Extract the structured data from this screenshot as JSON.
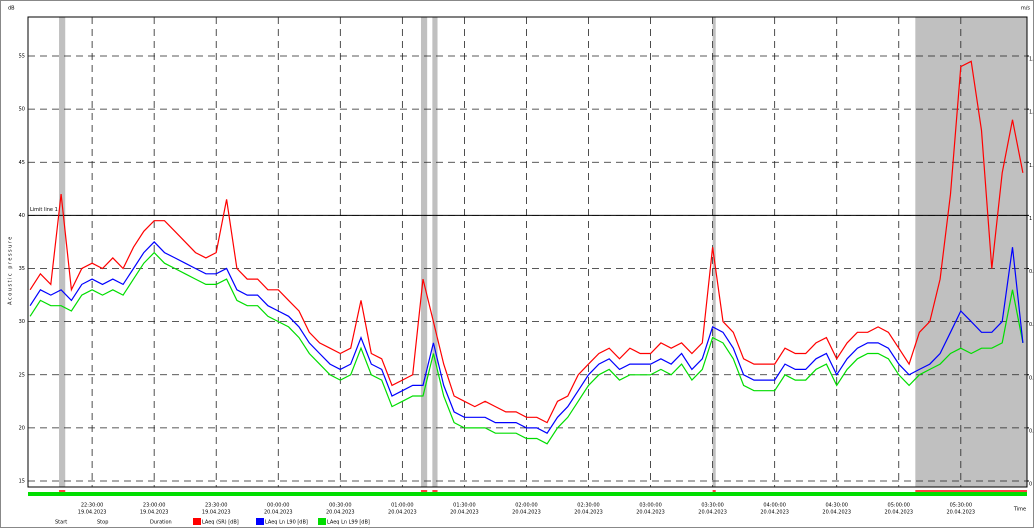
{
  "chart_data": {
    "type": "line",
    "y_unit": "dB",
    "y2_unit": "m/s",
    "y_label": "Acoustic pressure",
    "x_label": "Time",
    "grid": true,
    "x": [
      "2023-04-19T22:00:00",
      "2023-04-19T22:05:00",
      "2023-04-19T22:10:00",
      "2023-04-19T22:15:00",
      "2023-04-19T22:20:00",
      "2023-04-19T22:25:00",
      "2023-04-19T22:30:00",
      "2023-04-19T22:35:00",
      "2023-04-19T22:40:00",
      "2023-04-19T22:45:00",
      "2023-04-19T22:50:00",
      "2023-04-19T22:55:00",
      "2023-04-19T23:00:00",
      "2023-04-19T23:05:00",
      "2023-04-19T23:10:00",
      "2023-04-19T23:15:00",
      "2023-04-19T23:20:00",
      "2023-04-19T23:25:00",
      "2023-04-19T23:30:00",
      "2023-04-19T23:35:00",
      "2023-04-19T23:40:00",
      "2023-04-19T23:45:00",
      "2023-04-19T23:50:00",
      "2023-04-19T23:55:00",
      "2023-04-20T00:00:00",
      "2023-04-20T00:05:00",
      "2023-04-20T00:10:00",
      "2023-04-20T00:15:00",
      "2023-04-20T00:20:00",
      "2023-04-20T00:25:00",
      "2023-04-20T00:30:00",
      "2023-04-20T00:35:00",
      "2023-04-20T00:40:00",
      "2023-04-20T00:45:00",
      "2023-04-20T00:50:00",
      "2023-04-20T00:55:00",
      "2023-04-20T01:00:00",
      "2023-04-20T01:05:00",
      "2023-04-20T01:10:00",
      "2023-04-20T01:15:00",
      "2023-04-20T01:20:00",
      "2023-04-20T01:25:00",
      "2023-04-20T01:30:00",
      "2023-04-20T01:35:00",
      "2023-04-20T01:40:00",
      "2023-04-20T01:45:00",
      "2023-04-20T01:50:00",
      "2023-04-20T01:55:00",
      "2023-04-20T02:00:00",
      "2023-04-20T02:05:00",
      "2023-04-20T02:10:00",
      "2023-04-20T02:15:00",
      "2023-04-20T02:20:00",
      "2023-04-20T02:25:00",
      "2023-04-20T02:30:00",
      "2023-04-20T02:35:00",
      "2023-04-20T02:40:00",
      "2023-04-20T02:45:00",
      "2023-04-20T02:50:00",
      "2023-04-20T02:55:00",
      "2023-04-20T03:00:00",
      "2023-04-20T03:05:00",
      "2023-04-20T03:10:00",
      "2023-04-20T03:15:00",
      "2023-04-20T03:20:00",
      "2023-04-20T03:25:00",
      "2023-04-20T03:30:00",
      "2023-04-20T03:35:00",
      "2023-04-20T03:40:00",
      "2023-04-20T03:45:00",
      "2023-04-20T03:50:00",
      "2023-04-20T03:55:00",
      "2023-04-20T04:00:00",
      "2023-04-20T04:05:00",
      "2023-04-20T04:10:00",
      "2023-04-20T04:15:00",
      "2023-04-20T04:20:00",
      "2023-04-20T04:25:00",
      "2023-04-20T04:30:00",
      "2023-04-20T04:35:00",
      "2023-04-20T04:40:00",
      "2023-04-20T04:45:00",
      "2023-04-20T04:50:00",
      "2023-04-20T04:55:00",
      "2023-04-20T05:00:00",
      "2023-04-20T05:05:00",
      "2023-04-20T05:10:00",
      "2023-04-20T05:15:00",
      "2023-04-20T05:20:00",
      "2023-04-20T05:25:00",
      "2023-04-20T05:30:00",
      "2023-04-20T05:35:00",
      "2023-04-20T05:40:00",
      "2023-04-20T05:45:00",
      "2023-04-20T05:50:00",
      "2023-04-20T05:55:00",
      "2023-04-20T06:00:00"
    ],
    "xlim": [
      "2023-04-19T21:59:00",
      "2023-04-20T06:02:00"
    ],
    "xticks": [
      {
        "value": "2023-04-19T22:30:00",
        "label": "22:30:00",
        "date": "19.04.2023"
      },
      {
        "value": "2023-04-19T23:00:00",
        "label": "23:00:00",
        "date": "19.04.2023"
      },
      {
        "value": "2023-04-19T23:30:00",
        "label": "23:30:00",
        "date": "19.04.2023"
      },
      {
        "value": "2023-04-20T00:00:00",
        "label": "00:00:00",
        "date": "20.04.2023"
      },
      {
        "value": "2023-04-20T00:30:00",
        "label": "00:30:00",
        "date": "20.04.2023"
      },
      {
        "value": "2023-04-20T01:00:00",
        "label": "01:00:00",
        "date": "20.04.2023"
      },
      {
        "value": "2023-04-20T01:30:00",
        "label": "01:30:00",
        "date": "20.04.2023"
      },
      {
        "value": "2023-04-20T02:00:00",
        "label": "02:00:00",
        "date": "20.04.2023"
      },
      {
        "value": "2023-04-20T02:30:00",
        "label": "02:30:00",
        "date": "20.04.2023"
      },
      {
        "value": "2023-04-20T03:00:00",
        "label": "03:00:00",
        "date": "20.04.2023"
      },
      {
        "value": "2023-04-20T03:30:00",
        "label": "03:30:00",
        "date": "20.04.2023"
      },
      {
        "value": "2023-04-20T04:00:00",
        "label": "04:00:00",
        "date": "20.04.2023"
      },
      {
        "value": "2023-04-20T04:30:00",
        "label": "04:30:00",
        "date": "20.04.2023"
      },
      {
        "value": "2023-04-20T05:00:00",
        "label": "05:00:00",
        "date": "20.04.2023"
      },
      {
        "value": "2023-04-20T05:30:00",
        "label": "05:30:00",
        "date": "20.04.2023"
      }
    ],
    "ylim": [
      15,
      55
    ],
    "yticks": [
      15,
      20,
      25,
      30,
      35,
      40,
      45,
      50,
      55
    ],
    "y2lim": [
      0,
      1.6
    ],
    "y2ticks": [
      0,
      0.2,
      0.4,
      0.6,
      0.8,
      1,
      1.2,
      1.4,
      1.6
    ],
    "limit_line": {
      "value": 40,
      "label": "Limit line 1"
    },
    "excluded_ranges": [
      [
        "2023-04-19T22:14:00",
        "2023-04-19T22:17:00"
      ],
      [
        "2023-04-20T01:09:00",
        "2023-04-20T01:12:00"
      ],
      [
        "2023-04-20T01:14:30",
        "2023-04-20T01:17:00"
      ],
      [
        "2023-04-20T03:30:00",
        "2023-04-20T03:31:30"
      ],
      [
        "2023-04-20T05:08:00",
        "2023-04-20T06:02:00"
      ]
    ],
    "legend_extra": [
      "Start",
      "Stop",
      "Duration"
    ],
    "series": [
      {
        "name": "LAeq (SR) [dB]",
        "color": "#ff0000",
        "values": [
          33,
          34.5,
          33.5,
          42,
          33,
          35,
          35.5,
          35,
          36,
          35,
          37,
          38.5,
          39.5,
          39.5,
          38.5,
          37.5,
          36.5,
          36,
          36.5,
          41.5,
          35,
          34,
          34,
          33,
          33,
          32,
          31,
          29,
          28,
          27.5,
          27,
          27.5,
          32,
          27,
          26.5,
          24,
          24.5,
          25,
          34,
          30,
          26,
          23,
          22.5,
          22,
          22.5,
          22,
          21.5,
          21.5,
          21,
          21,
          20.5,
          22.5,
          23,
          25,
          26,
          27,
          27.5,
          26.5,
          27.5,
          27,
          27,
          28,
          27.5,
          28,
          27,
          28,
          37,
          30,
          29,
          26.5,
          26,
          26,
          26,
          27.5,
          27,
          27,
          28,
          28.5,
          26.5,
          28,
          29,
          29,
          29.5,
          29,
          27.5,
          26,
          29,
          30,
          34,
          42,
          54,
          54.5,
          48,
          35,
          44,
          49,
          44
        ]
      },
      {
        "name": "LAeq Ln L90 [dB]",
        "color": "#0000ff",
        "values": [
          31.5,
          33,
          32.5,
          33,
          32,
          33.5,
          34,
          33.5,
          34,
          33.5,
          35,
          36.5,
          37.5,
          36.5,
          36,
          35.5,
          35,
          34.5,
          34.5,
          35,
          33,
          32.5,
          32.5,
          31.5,
          31,
          30.5,
          29.5,
          28,
          27,
          26,
          25.5,
          26,
          28.5,
          26,
          25.5,
          23,
          23.5,
          24,
          24,
          28,
          24,
          21.5,
          21,
          21,
          21,
          20.5,
          20.5,
          20.5,
          20,
          20,
          19.5,
          21,
          22,
          23.5,
          25,
          26,
          26.5,
          25.5,
          26,
          26,
          26,
          26.5,
          26,
          27,
          25.5,
          26.5,
          29.5,
          29,
          27.5,
          25,
          24.5,
          24.5,
          24.5,
          26,
          25.5,
          25.5,
          26.5,
          27,
          25,
          26.5,
          27.5,
          28,
          28,
          27.5,
          26,
          25,
          25.5,
          26,
          27,
          29,
          31,
          30,
          29,
          29,
          30,
          37,
          28
        ]
      },
      {
        "name": "LAeq Ln L99 [dB]",
        "color": "#00dd00",
        "values": [
          30.5,
          32,
          31.5,
          31.5,
          31,
          32.5,
          33,
          32.5,
          33,
          32.5,
          34,
          35.5,
          36.5,
          35.5,
          35,
          34.5,
          34,
          33.5,
          33.5,
          34,
          32,
          31.5,
          31.5,
          30.5,
          30,
          29.5,
          28.5,
          27,
          26,
          25,
          24.5,
          25,
          27.5,
          25,
          24.5,
          22,
          22.5,
          23,
          23,
          27,
          23,
          20.5,
          20,
          20,
          20,
          19.5,
          19.5,
          19.5,
          19,
          19,
          18.5,
          20,
          21,
          22.5,
          24,
          25,
          25.5,
          24.5,
          25,
          25,
          25,
          25.5,
          25,
          26,
          24.5,
          25.5,
          28.5,
          28,
          26.5,
          24,
          23.5,
          23.5,
          23.5,
          25,
          24.5,
          24.5,
          25.5,
          26,
          24,
          25.5,
          26.5,
          27,
          27,
          26.5,
          25,
          24,
          25,
          25.5,
          26,
          27,
          27.5,
          27,
          27.5,
          27.5,
          28,
          33,
          28
        ]
      }
    ]
  }
}
